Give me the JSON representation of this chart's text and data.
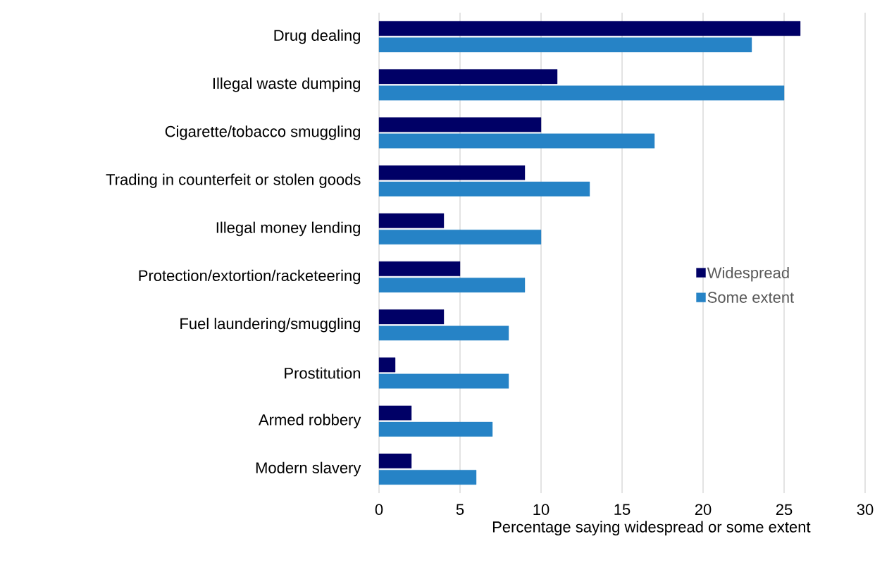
{
  "chart_data": {
    "type": "bar",
    "orientation": "horizontal",
    "xlabel": "Percentage saying widespread or some extent",
    "categories": [
      "Drug dealing",
      "Illegal waste dumping",
      "Cigarette/tobacco smuggling",
      "Trading in counterfeit or stolen goods",
      "Illegal money lending",
      "Protection/extortion/racketeering",
      "Fuel laundering/smuggling",
      "Prostitution",
      "Armed robbery",
      "Modern slavery"
    ],
    "series": [
      {
        "name": "Widespread",
        "color": "#000066",
        "values": [
          26,
          11,
          10,
          9,
          4,
          5,
          4,
          1,
          2,
          2
        ]
      },
      {
        "name": "Some extent",
        "color": "#2683c6",
        "values": [
          23,
          25,
          17,
          13,
          10,
          9,
          8,
          8,
          7,
          6
        ]
      }
    ],
    "xlim": [
      0,
      30
    ],
    "xticks": [
      0,
      5,
      10,
      15,
      20,
      25,
      30
    ],
    "grid": "x",
    "legend": "right"
  }
}
